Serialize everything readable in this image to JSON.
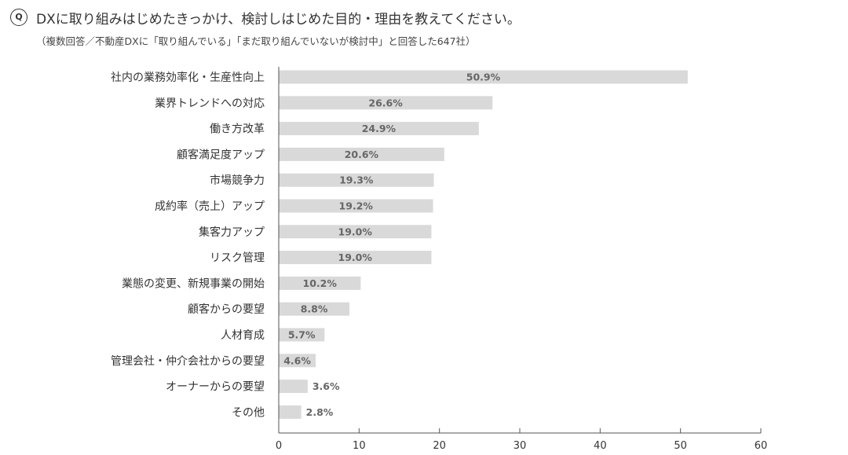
{
  "header": {
    "q_badge": "Q",
    "title": "DXに取り組みはじめたきっかけ、検討しはじめた目的・理由を教えてください。",
    "subtitle": "（複数回答／不動産DXに「取り組んでいる」「まだ取り組んでいないが検討中」と回答した647社）"
  },
  "chart_data": {
    "type": "bar",
    "orientation": "horizontal",
    "categories": [
      "社内の業務効率化・生産性向上",
      "業界トレンドへの対応",
      "働き方改革",
      "顧客満足度アップ",
      "市場競争力",
      "成約率（売上）アップ",
      "集客力アップ",
      "リスク管理",
      "業態の変更、新規事業の開始",
      "顧客からの要望",
      "人材育成",
      "管理会社・仲介会社からの要望",
      "オーナーからの要望",
      "その他"
    ],
    "values": [
      50.9,
      26.6,
      24.9,
      20.6,
      19.3,
      19.2,
      19.0,
      19.0,
      10.2,
      8.8,
      5.7,
      4.6,
      3.6,
      2.8
    ],
    "data_labels": [
      "50.9%",
      "26.6%",
      "24.9%",
      "20.6%",
      "19.3%",
      "19.2%",
      "19.0%",
      "19.0%",
      "10.2%",
      "8.8%",
      "5.7%",
      "4.6%",
      "3.6%",
      "2.8%"
    ],
    "xlim": [
      0,
      60
    ],
    "xticks": [
      "0",
      "10",
      "20",
      "30",
      "40",
      "50",
      "60"
    ],
    "grid": false,
    "colors": {
      "bar": "#d9d9d9",
      "label": "#666666",
      "axis": "#555555"
    }
  }
}
